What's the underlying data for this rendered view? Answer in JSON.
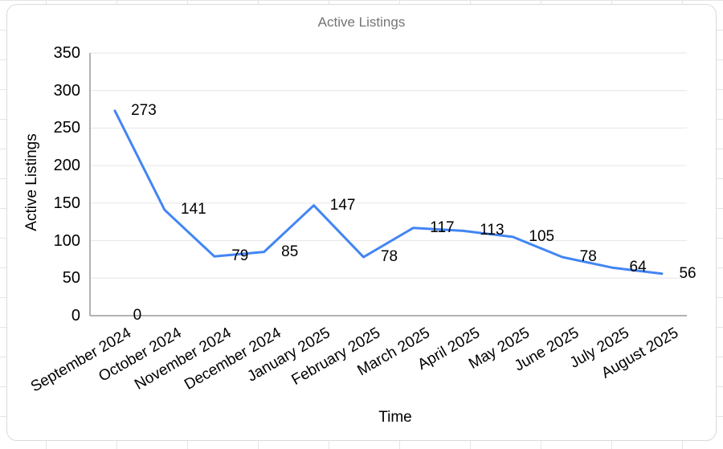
{
  "title": "Active Listings",
  "axes": {
    "x_title": "Time",
    "y_title": "Active Listings"
  },
  "chart_data": {
    "type": "line",
    "title": "Active Listings",
    "xlabel": "Time",
    "ylabel": "Active Listings",
    "categories": [
      "September 2024",
      "October 2024",
      "November 2024",
      "December 2024",
      "January 2025",
      "February 2025",
      "March 2025",
      "April 2025",
      "May 2025",
      "June 2025",
      "July 2025",
      "August 2025"
    ],
    "series": [
      {
        "name": "Active Listings",
        "values": [
          273,
          141,
          79,
          85,
          147,
          78,
          117,
          113,
          105,
          78,
          64,
          56
        ],
        "color": "#4285f4"
      },
      {
        "name": "",
        "values": [
          0,
          null,
          null,
          null,
          null,
          null,
          null,
          null,
          null,
          null,
          null,
          null
        ],
        "color": "#4285f4"
      }
    ],
    "data_labels": true,
    "y_ticks": [
      0,
      50,
      100,
      150,
      200,
      250,
      300,
      350
    ],
    "ylim": [
      0,
      350
    ],
    "grid": true,
    "legend": "none",
    "colors": {
      "line": "#4285f4",
      "gridline": "#e6e6e6",
      "axis_line": "#999999",
      "title_text": "#757575",
      "label_text": "#000000"
    }
  }
}
